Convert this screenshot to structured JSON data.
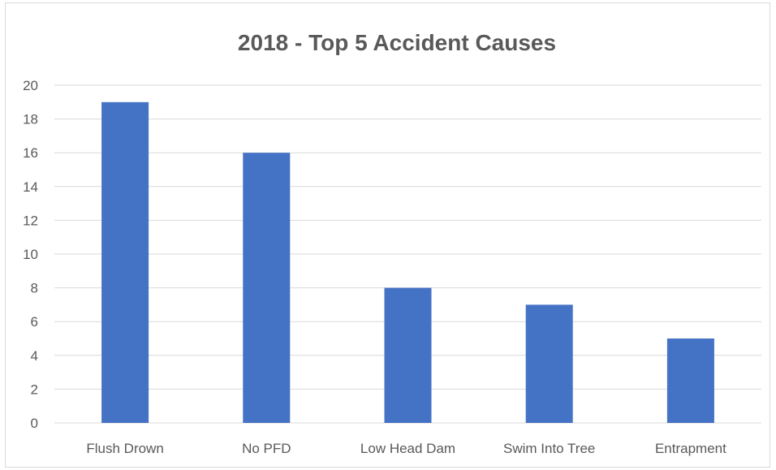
{
  "chart_data": {
    "type": "bar",
    "title": "2018 - Top 5 Accident Causes",
    "xlabel": "",
    "ylabel": "",
    "categories": [
      "Flush Drown",
      "No PFD",
      "Low Head Dam",
      "Swim Into Tree",
      "Entrapment"
    ],
    "values": [
      19,
      16,
      8,
      7,
      5
    ],
    "ylim": [
      0,
      20
    ],
    "yticks": [
      0,
      2,
      4,
      6,
      8,
      10,
      12,
      14,
      16,
      18,
      20
    ],
    "grid": true,
    "legend": "none",
    "bar_color": "#4472c4",
    "gridline_color": "#d9d9d9",
    "text_color": "#595959"
  }
}
